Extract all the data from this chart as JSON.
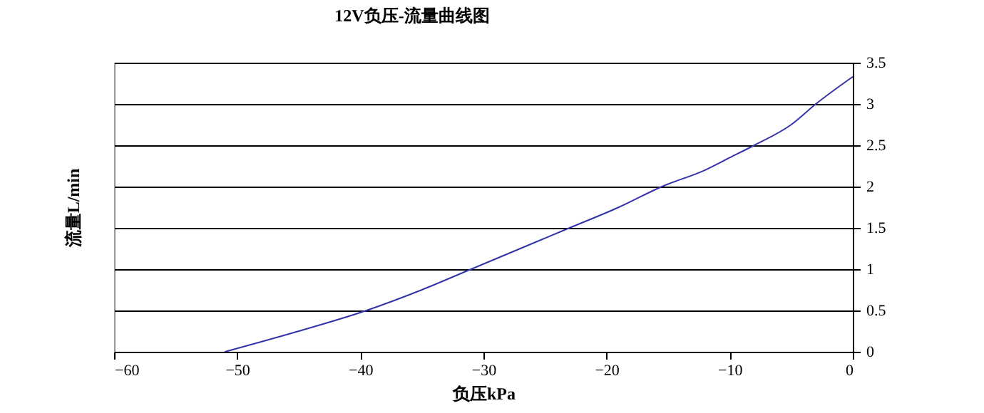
{
  "chart_data": {
    "type": "line",
    "title": "12V负压-流量曲线图",
    "xlabel": "负压kPa",
    "ylabel": "流量L/min",
    "x": [
      -51,
      -45,
      -39.5,
      -35,
      -31,
      -27,
      -23,
      -19,
      -15.5,
      -12,
      -10,
      -8,
      -5,
      -3,
      0
    ],
    "series": [
      {
        "color": "#3333aa",
        "values": [
          0,
          0.25,
          0.5,
          0.75,
          1,
          1.25,
          1.5,
          1.75,
          2,
          2.2,
          2.35,
          2.5,
          2.75,
          3,
          3.33
        ]
      }
    ],
    "xlim": [
      -60,
      0
    ],
    "xticks": [
      -60,
      -50,
      -40,
      -30,
      -20,
      -10,
      0
    ],
    "ylim": [
      0,
      3.5
    ],
    "yticks": [
      0,
      0.5,
      1,
      1.5,
      2,
      2.5,
      3,
      3.5
    ],
    "grid": "y",
    "legend": false,
    "marker": "none",
    "line_style": "solid"
  }
}
